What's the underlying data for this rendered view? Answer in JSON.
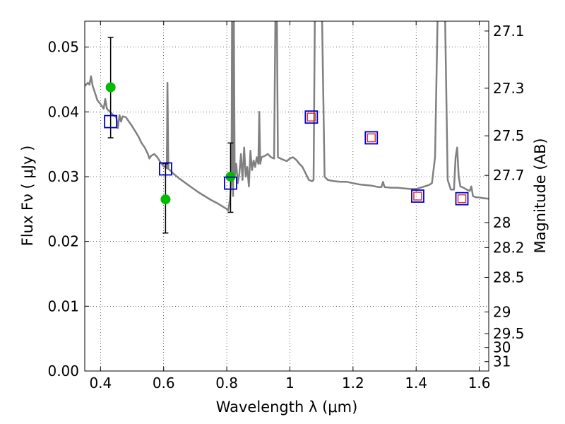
{
  "chart_data": {
    "type": "scatter",
    "xlabel": "Wavelength  λ (μm)",
    "ylabel": "Flux  Fν  ( μJy )",
    "y2label": "Magnitude (AB)",
    "xlim": [
      0.35,
      1.63
    ],
    "ylim": [
      0.0,
      0.054
    ],
    "grid": true,
    "x_ticks": [
      {
        "value": 0.4,
        "label": "0.4"
      },
      {
        "value": 0.6,
        "label": "0.6"
      },
      {
        "value": 0.8,
        "label": "0.8"
      },
      {
        "value": 1.0,
        "label": "1"
      },
      {
        "value": 1.2,
        "label": "1.2"
      },
      {
        "value": 1.4,
        "label": "1.4"
      },
      {
        "value": 1.6,
        "label": "1.6"
      }
    ],
    "y_ticks": [
      {
        "value": 0.0,
        "label": "0.00"
      },
      {
        "value": 0.01,
        "label": "0.01"
      },
      {
        "value": 0.02,
        "label": "0.02"
      },
      {
        "value": 0.03,
        "label": "0.03"
      },
      {
        "value": 0.04,
        "label": "0.04"
      },
      {
        "value": 0.05,
        "label": "0.05"
      }
    ],
    "y2_ticks": [
      {
        "value": 27.1,
        "label": "27.1"
      },
      {
        "value": 27.3,
        "label": "27.3"
      },
      {
        "value": 27.5,
        "label": "27.5"
      },
      {
        "value": 27.7,
        "label": "27.7"
      },
      {
        "value": 28.0,
        "label": "28"
      },
      {
        "value": 28.2,
        "label": "28.2"
      },
      {
        "value": 28.5,
        "label": "28.5"
      },
      {
        "value": 29.0,
        "label": "29"
      },
      {
        "value": 29.5,
        "label": "29.5"
      },
      {
        "value": 30.0,
        "label": "30"
      },
      {
        "value": 31.0,
        "label": "31"
      }
    ],
    "series": [
      {
        "kind": "line",
        "color": "#808080",
        "points": [
          [
            0.35,
            0.044
          ],
          [
            0.36,
            0.0445
          ],
          [
            0.365,
            0.0442
          ],
          [
            0.37,
            0.0455
          ],
          [
            0.375,
            0.044
          ],
          [
            0.38,
            0.0433
          ],
          [
            0.39,
            0.0418
          ],
          [
            0.4,
            0.0412
          ],
          [
            0.41,
            0.0405
          ],
          [
            0.415,
            0.042
          ],
          [
            0.42,
            0.0405
          ],
          [
            0.43,
            0.04
          ],
          [
            0.44,
            0.0395
          ],
          [
            0.45,
            0.0392
          ],
          [
            0.455,
            0.0375
          ],
          [
            0.46,
            0.0395
          ],
          [
            0.465,
            0.0385
          ],
          [
            0.47,
            0.0393
          ],
          [
            0.48,
            0.0392
          ],
          [
            0.49,
            0.0385
          ],
          [
            0.5,
            0.0378
          ],
          [
            0.51,
            0.037
          ],
          [
            0.52,
            0.0362
          ],
          [
            0.53,
            0.0352
          ],
          [
            0.54,
            0.0345
          ],
          [
            0.55,
            0.0335
          ],
          [
            0.555,
            0.0328
          ],
          [
            0.56,
            0.0332
          ],
          [
            0.57,
            0.0335
          ],
          [
            0.58,
            0.033
          ],
          [
            0.59,
            0.0322
          ],
          [
            0.6,
            0.0316
          ],
          [
            0.605,
            0.0315
          ],
          [
            0.61,
            0.0313
          ],
          [
            0.612,
            0.0445
          ],
          [
            0.615,
            0.0312
          ],
          [
            0.62,
            0.031
          ],
          [
            0.63,
            0.0305
          ],
          [
            0.65,
            0.0297
          ],
          [
            0.67,
            0.029
          ],
          [
            0.69,
            0.0283
          ],
          [
            0.71,
            0.0276
          ],
          [
            0.73,
            0.027
          ],
          [
            0.75,
            0.0264
          ],
          [
            0.77,
            0.0259
          ],
          [
            0.79,
            0.0253
          ],
          [
            0.8,
            0.025
          ],
          [
            0.805,
            0.0248
          ],
          [
            0.81,
            0.0265
          ],
          [
            0.815,
            0.03
          ],
          [
            0.817,
            0.06
          ],
          [
            0.82,
            0.027
          ],
          [
            0.822,
            0.06
          ],
          [
            0.825,
            0.03
          ],
          [
            0.83,
            0.032
          ],
          [
            0.835,
            0.029
          ],
          [
            0.84,
            0.0305
          ],
          [
            0.845,
            0.0335
          ],
          [
            0.85,
            0.0295
          ],
          [
            0.855,
            0.0345
          ],
          [
            0.86,
            0.03
          ],
          [
            0.865,
            0.0315
          ],
          [
            0.87,
            0.0285
          ],
          [
            0.875,
            0.034
          ],
          [
            0.88,
            0.031
          ],
          [
            0.885,
            0.0325
          ],
          [
            0.89,
            0.0315
          ],
          [
            0.895,
            0.033
          ],
          [
            0.9,
            0.032
          ],
          [
            0.903,
            0.04
          ],
          [
            0.906,
            0.032
          ],
          [
            0.91,
            0.033
          ],
          [
            0.92,
            0.0332
          ],
          [
            0.93,
            0.0335
          ],
          [
            0.94,
            0.033
          ],
          [
            0.95,
            0.0328
          ],
          [
            0.955,
            0.06
          ],
          [
            0.958,
            0.06
          ],
          [
            0.962,
            0.033
          ],
          [
            0.97,
            0.0328
          ],
          [
            0.98,
            0.0326
          ],
          [
            0.99,
            0.0324
          ],
          [
            1.0,
            0.0328
          ],
          [
            1.01,
            0.033
          ],
          [
            1.02,
            0.0326
          ],
          [
            1.03,
            0.032
          ],
          [
            1.04,
            0.0315
          ],
          [
            1.05,
            0.0305
          ],
          [
            1.06,
            0.0295
          ],
          [
            1.07,
            0.0293
          ],
          [
            1.075,
            0.0295
          ],
          [
            1.08,
            0.06
          ],
          [
            1.1,
            0.06
          ],
          [
            1.11,
            0.03
          ],
          [
            1.12,
            0.0295
          ],
          [
            1.14,
            0.0293
          ],
          [
            1.16,
            0.0292
          ],
          [
            1.18,
            0.0292
          ],
          [
            1.2,
            0.029
          ],
          [
            1.22,
            0.0288
          ],
          [
            1.24,
            0.0287
          ],
          [
            1.26,
            0.0286
          ],
          [
            1.28,
            0.0284
          ],
          [
            1.29,
            0.0284
          ],
          [
            1.295,
            0.0292
          ],
          [
            1.3,
            0.0284
          ],
          [
            1.32,
            0.0283
          ],
          [
            1.34,
            0.0283
          ],
          [
            1.36,
            0.0282
          ],
          [
            1.38,
            0.0281
          ],
          [
            1.4,
            0.0281
          ],
          [
            1.42,
            0.0284
          ],
          [
            1.44,
            0.0287
          ],
          [
            1.45,
            0.029
          ],
          [
            1.46,
            0.033
          ],
          [
            1.47,
            0.06
          ],
          [
            1.49,
            0.06
          ],
          [
            1.5,
            0.0295
          ],
          [
            1.51,
            0.028
          ],
          [
            1.52,
            0.028
          ],
          [
            1.525,
            0.033
          ],
          [
            1.53,
            0.0345
          ],
          [
            1.535,
            0.03
          ],
          [
            1.54,
            0.0285
          ],
          [
            1.55,
            0.0283
          ],
          [
            1.56,
            0.028
          ],
          [
            1.57,
            0.0278
          ],
          [
            1.575,
            0.0285
          ],
          [
            1.58,
            0.027
          ],
          [
            1.59,
            0.0268
          ],
          [
            1.6,
            0.0268
          ],
          [
            1.61,
            0.0267
          ],
          [
            1.63,
            0.0266
          ]
        ]
      },
      {
        "kind": "errorbar",
        "color": "#000000",
        "points": [
          {
            "x": 0.432,
            "y": 0.0438,
            "lo": 0.036,
            "hi": 0.0515
          },
          {
            "x": 0.606,
            "y": 0.0265,
            "lo": 0.0213,
            "hi": 0.032
          },
          {
            "x": 0.812,
            "y": 0.03,
            "lo": 0.0245,
            "hi": 0.0352
          }
        ]
      },
      {
        "kind": "circle",
        "color": "#00bb00",
        "points": [
          [
            0.432,
            0.0438
          ],
          [
            0.606,
            0.0265
          ],
          [
            0.812,
            0.03
          ]
        ]
      },
      {
        "kind": "square",
        "color": "#0000cc",
        "points": [
          [
            0.432,
            0.0385
          ],
          [
            0.606,
            0.0312
          ],
          [
            0.812,
            0.029
          ],
          [
            1.068,
            0.0392
          ],
          [
            1.258,
            0.036
          ],
          [
            1.405,
            0.027
          ],
          [
            1.545,
            0.0266
          ]
        ]
      },
      {
        "kind": "square-small",
        "color": "#dd3333",
        "points": [
          [
            1.068,
            0.0392
          ],
          [
            1.258,
            0.036
          ],
          [
            1.405,
            0.027
          ],
          [
            1.545,
            0.0266
          ]
        ]
      }
    ]
  }
}
